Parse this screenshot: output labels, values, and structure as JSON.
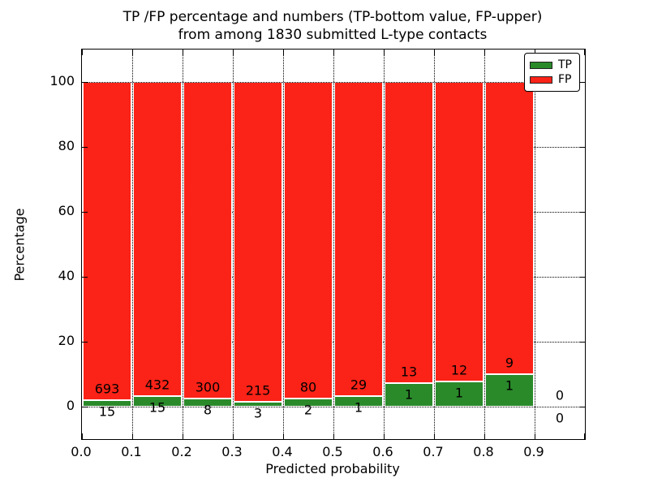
{
  "figure": {
    "title_line1": "TP /FP percentage and numbers (TP-bottom value, FP-upper)",
    "title_line2": "from among 1830 submitted L-type contacts",
    "background": "#ffffff"
  },
  "chart_data": {
    "type": "bar",
    "stacked": true,
    "normalized": "each bin scaled so TP+FP = 100%",
    "title": "TP /FP percentage and numbers (TP-bottom value, FP-upper) from among 1830 submitted L-type contacts",
    "xlabel": "Predicted probability",
    "ylabel": "Percentage",
    "xlim": [
      0.0,
      1.0
    ],
    "ylim": [
      -10,
      110
    ],
    "bin_width": 0.1,
    "bin_starts": [
      0.0,
      0.1,
      0.2,
      0.3,
      0.4,
      0.5,
      0.6,
      0.7,
      0.8,
      0.9
    ],
    "xtick_labels": [
      "0.0",
      "0.1",
      "0.2",
      "0.3",
      "0.4",
      "0.5",
      "0.6",
      "0.7",
      "0.8",
      "0.9"
    ],
    "yticks": [
      0,
      20,
      40,
      60,
      80,
      100
    ],
    "grid": "dotted",
    "legend": {
      "position": "upper right"
    },
    "series": [
      {
        "name": "TP",
        "color": "#2a8a2a",
        "counts": [
          15,
          15,
          8,
          3,
          2,
          1,
          1,
          1,
          1,
          0
        ]
      },
      {
        "name": "FP",
        "color": "#fb2217",
        "counts": [
          693,
          432,
          300,
          215,
          80,
          29,
          13,
          12,
          9,
          0
        ]
      }
    ],
    "total_submitted": 1830
  }
}
